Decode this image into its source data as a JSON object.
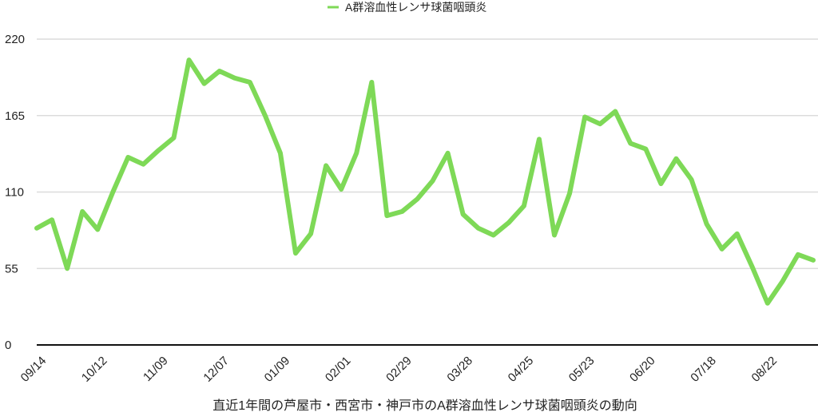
{
  "chart_data": {
    "type": "line",
    "title": "",
    "xlabel": "直近1年間の芦屋市・西宮市・神戸市のA群溶血性レンサ球菌咽頭炎の動向",
    "ylabel": "",
    "ylim": [
      0,
      220
    ],
    "yticks": [
      0,
      55,
      110,
      165,
      220
    ],
    "grid": true,
    "legend_position": "top",
    "x_tick_labels": [
      "09/14",
      "10/12",
      "11/09",
      "12/07",
      "01/09",
      "02/01",
      "02/29",
      "03/28",
      "04/25",
      "05/23",
      "06/20",
      "07/18",
      "08/22"
    ],
    "x_tick_every": 4,
    "series": [
      {
        "name": "A群溶血性レンサ球菌咽頭炎",
        "color": "#7ed957",
        "values": [
          84,
          90,
          55,
          96,
          83,
          110,
          135,
          130,
          140,
          149,
          205,
          188,
          197,
          192,
          189,
          165,
          138,
          66,
          80,
          129,
          112,
          138,
          189,
          93,
          96,
          105,
          118,
          138,
          94,
          84,
          79,
          88,
          100,
          148,
          79,
          109,
          164,
          159,
          168,
          145,
          141,
          116,
          134,
          119,
          87,
          69,
          80,
          56,
          30,
          46,
          65,
          61
        ]
      }
    ]
  }
}
